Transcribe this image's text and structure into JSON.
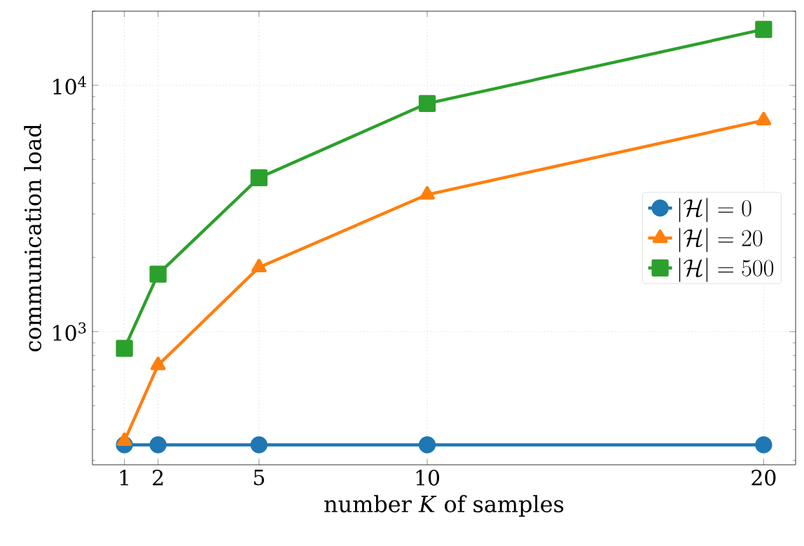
{
  "chart_data": {
    "type": "line",
    "xlabel": "number *K* of samples",
    "ylabel": "communication load",
    "x": [
      1,
      2,
      5,
      10,
      20
    ],
    "xlim": [
      0.05,
      20.95
    ],
    "xticks": [
      1,
      2,
      5,
      10,
      20
    ],
    "ylim": [
      288,
      20000
    ],
    "yticks": [
      {
        "value": 1000,
        "label": "10$^{3}$"
      },
      {
        "value": 10000,
        "label": "10$^{4}$"
      }
    ],
    "log": "y",
    "grid": true,
    "legend": "right",
    "series": [
      {
        "name": "|\\mathcal{H}|=0",
        "color": "#1f77b4",
        "marker": "circle",
        "values": [
          347,
          347,
          347,
          347,
          347
        ]
      },
      {
        "name": "|\\mathcal{H}|=20",
        "color": "#ff7f0e",
        "marker": "triangle",
        "values": [
          360,
          731,
          1824,
          3600,
          7210
        ]
      },
      {
        "name": "|\\mathcal{H}|=500",
        "color": "#2ca02c",
        "marker": "square",
        "values": [
          855,
          1711,
          4214,
          8440,
          16870
        ]
      }
    ]
  }
}
